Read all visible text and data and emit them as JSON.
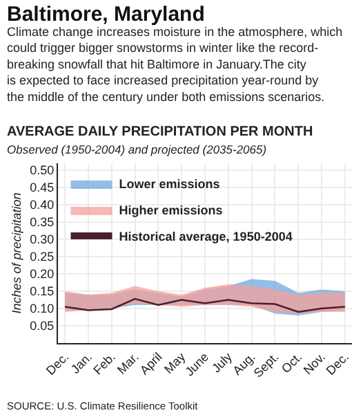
{
  "chart_data": {
    "type": "line",
    "title": "Baltimore, Maryland",
    "subtitle": "Climate change increases moisture in the atmosphere, which could trigger bigger snowstorms in winter like the record-breaking snowfall that hit Baltimore in January.The city is expected to face increased precipitation year-round by the middle of the century under both emissions scenarios.",
    "annotations": [
      "AVERAGE DAILY PRECIPITATION PER MONTH",
      "Observed (1950-2004) and projected (2035-2065)",
      "SOURCE: U.S. Climate Resilience Toolkit"
    ],
    "ylabel": "Inches of precipitation",
    "categories": [
      "Dec.",
      "Jan.",
      "Feb.",
      "Mar.",
      "April",
      "May",
      "June",
      "July",
      "Aug.",
      "Sept.",
      "Oct.",
      "Nov.",
      "Dec."
    ],
    "series": [
      {
        "name": "Lower emissions",
        "type": "area",
        "color": "#6fa8dc",
        "values": [
          null,
          null,
          null,
          null,
          null,
          null,
          null,
          null,
          null,
          null,
          null,
          null,
          null
        ],
        "lower": [
          0.095,
          0.095,
          0.1,
          0.11,
          0.11,
          0.11,
          0.11,
          0.11,
          0.11,
          0.085,
          0.08,
          0.09,
          0.095
        ],
        "upper": [
          0.145,
          0.14,
          0.14,
          0.155,
          0.145,
          0.135,
          0.155,
          0.165,
          0.185,
          0.18,
          0.145,
          0.155,
          0.15
        ]
      },
      {
        "name": "Higher emissions",
        "type": "area",
        "color": "#f4a09a",
        "values": [
          null,
          null,
          null,
          null,
          null,
          null,
          null,
          null,
          null,
          null,
          null,
          null,
          null
        ],
        "lower": [
          0.09,
          0.095,
          0.1,
          0.115,
          0.11,
          0.105,
          0.11,
          0.11,
          0.105,
          0.09,
          0.085,
          0.09,
          0.09
        ],
        "upper": [
          0.15,
          0.14,
          0.145,
          0.165,
          0.15,
          0.14,
          0.16,
          0.17,
          0.165,
          0.155,
          0.14,
          0.145,
          0.145
        ]
      },
      {
        "name": "Historical average, 1950-2004",
        "color": "#4a1f2e",
        "values": [
          0.105,
          0.095,
          0.098,
          0.128,
          0.11,
          0.125,
          0.115,
          0.125,
          0.115,
          0.113,
          0.09,
          0.1,
          0.105
        ]
      }
    ],
    "ylim": [
      0,
      0.52
    ],
    "yticks": [
      0.05,
      {
        "value": 0.1,
        "label": "0.10"
      },
      0.15,
      {
        "value": 0.2,
        "label": "0.20"
      },
      0.25,
      {
        "value": 0.3,
        "label": "0.30"
      },
      0.35,
      {
        "value": 0.4,
        "label": "0.40"
      },
      0.45,
      {
        "value": 0.5,
        "label": "0.50"
      }
    ],
    "grid": true,
    "legend": "top left"
  }
}
